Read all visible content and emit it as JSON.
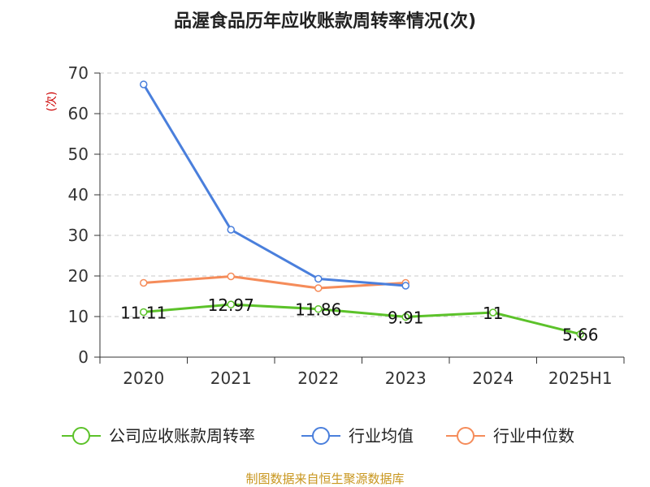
{
  "chart_data": {
    "type": "line",
    "title": "品渥食品历年应收账款周转率情况(次)",
    "ylabel": "(次)",
    "xlabel": "",
    "categories": [
      "2020",
      "2021",
      "2022",
      "2023",
      "2024",
      "2025H1"
    ],
    "ylim": [
      0,
      70
    ],
    "yticks": [
      0,
      10,
      20,
      30,
      40,
      50,
      60,
      70
    ],
    "grid": true,
    "legend_position": "bottom",
    "series": [
      {
        "name": "公司应收账款周转率",
        "color": "#5cc22a",
        "values": [
          11.11,
          12.97,
          11.86,
          9.91,
          11,
          5.66
        ],
        "labels": [
          "11.11",
          "12.97",
          "11.86",
          "9.91",
          "11",
          "5.66"
        ]
      },
      {
        "name": "行业均值",
        "color": "#4a7fdc",
        "values": [
          67.2,
          31.4,
          19.3,
          17.6,
          null,
          null
        ]
      },
      {
        "name": "行业中位数",
        "color": "#f58c5a",
        "values": [
          18.3,
          19.9,
          17.0,
          18.3,
          null,
          null
        ]
      }
    ]
  },
  "source_text": "制图数据来自恒生聚源数据库"
}
